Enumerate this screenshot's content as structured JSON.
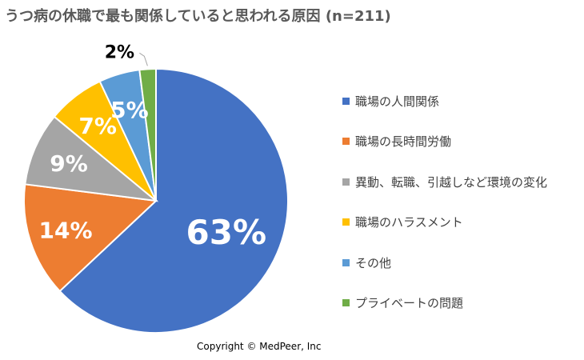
{
  "chart_data": {
    "type": "pie",
    "title": "うつ病の休職で最も関係していると思われる原因 (n=211)",
    "categories": [
      "職場の人間関係",
      "職場の長時間労働",
      "異動、転職、引越しなど環境の変化",
      "職場のハラスメント",
      "その他",
      "プライベートの問題"
    ],
    "values": [
      63,
      14,
      9,
      7,
      5,
      2
    ],
    "data_labels": [
      "63%",
      "14%",
      "9%",
      "7%",
      "5%",
      "2%"
    ],
    "colors": [
      "#4472C4",
      "#ED7D31",
      "#A5A5A5",
      "#FFC000",
      "#5B9BD5",
      "#70AD47"
    ],
    "legend_position": "right"
  },
  "footer": {
    "copyright": "Copyright © MedPeer, Inc"
  }
}
